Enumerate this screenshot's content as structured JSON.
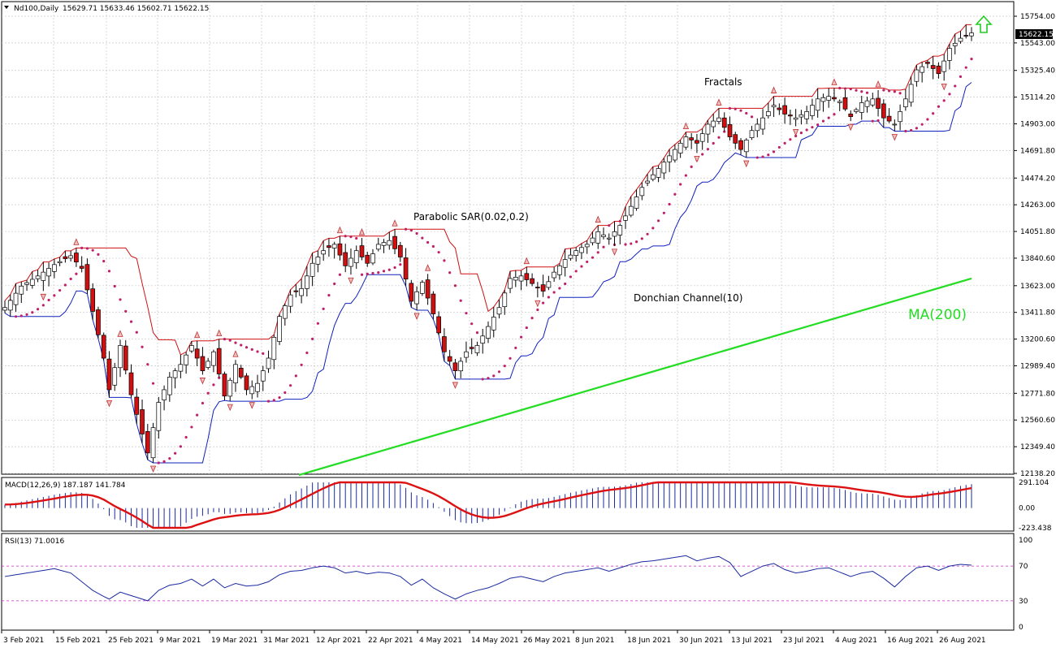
{
  "chart_data": [
    {
      "type": "candlestick",
      "header": {
        "symbol": "Nd100,Daily",
        "ohlc": "15629.71 15633.46 15602.71 15622.15"
      },
      "last_price": "15622.15",
      "y_ticks": [
        "15754.00",
        "15543.00",
        "15325.40",
        "15114.20",
        "14903.00",
        "14691.80",
        "14474.20",
        "14263.00",
        "14051.80",
        "13840.60",
        "13623.00",
        "13411.80",
        "13200.60",
        "12989.40",
        "12771.80",
        "12560.60",
        "12349.40",
        "12138.20"
      ],
      "ylim": [
        12138.2,
        15754.0
      ],
      "x_labels": [
        "3 Feb 2021",
        "15 Feb 2021",
        "25 Feb 2021",
        "9 Mar 2021",
        "19 Mar 2021",
        "31 Mar 2021",
        "12 Apr 2021",
        "22 Apr 2021",
        "4 May 2021",
        "14 May 2021",
        "26 May 2021",
        "8 Jun 2021",
        "18 Jun 2021",
        "30 Jun 2021",
        "13 Jul 2021",
        "23 Jul 2021",
        "4 Aug 2021",
        "16 Aug 2021",
        "26 Aug 2021"
      ],
      "annotations": {
        "fractals": "Fractals",
        "sar": "Parabolic SAR(0.02,0.2)",
        "donchian": "Donchian Channel(10)",
        "ma": "MA(200)"
      },
      "close_anchors": [
        [
          0,
          13450
        ],
        [
          3,
          13620
        ],
        [
          6,
          13700
        ],
        [
          9,
          13790
        ],
        [
          12,
          13860
        ],
        [
          14,
          13760
        ],
        [
          16,
          13420
        ],
        [
          18,
          13050
        ],
        [
          19,
          12800
        ],
        [
          21,
          13150
        ],
        [
          23,
          12760
        ],
        [
          25,
          12450
        ],
        [
          26,
          12300
        ],
        [
          28,
          12700
        ],
        [
          30,
          12900
        ],
        [
          32,
          13000
        ],
        [
          34,
          13150
        ],
        [
          36,
          12950
        ],
        [
          38,
          13100
        ],
        [
          40,
          12750
        ],
        [
          42,
          13000
        ],
        [
          44,
          12800
        ],
        [
          46,
          12850
        ],
        [
          48,
          13050
        ],
        [
          50,
          13380
        ],
        [
          52,
          13550
        ],
        [
          54,
          13600
        ],
        [
          56,
          13800
        ],
        [
          58,
          13900
        ],
        [
          60,
          13950
        ],
        [
          62,
          13780
        ],
        [
          64,
          13900
        ],
        [
          66,
          13800
        ],
        [
          68,
          13950
        ],
        [
          70,
          13980
        ],
        [
          72,
          13850
        ],
        [
          74,
          13500
        ],
        [
          76,
          13650
        ],
        [
          78,
          13400
        ],
        [
          80,
          13100
        ],
        [
          82,
          12950
        ],
        [
          84,
          13100
        ],
        [
          86,
          13150
        ],
        [
          88,
          13300
        ],
        [
          90,
          13450
        ],
        [
          92,
          13680
        ],
        [
          94,
          13700
        ],
        [
          96,
          13640
        ],
        [
          98,
          13580
        ],
        [
          100,
          13730
        ],
        [
          102,
          13830
        ],
        [
          104,
          13900
        ],
        [
          106,
          13950
        ],
        [
          108,
          14050
        ],
        [
          110,
          14000
        ],
        [
          112,
          14100
        ],
        [
          114,
          14250
        ],
        [
          116,
          14400
        ],
        [
          118,
          14500
        ],
        [
          120,
          14600
        ],
        [
          122,
          14700
        ],
        [
          124,
          14800
        ],
        [
          126,
          14750
        ],
        [
          128,
          14900
        ],
        [
          130,
          14950
        ],
        [
          132,
          14800
        ],
        [
          134,
          14700
        ],
        [
          136,
          14850
        ],
        [
          138,
          14950
        ],
        [
          140,
          15050
        ],
        [
          142,
          14980
        ],
        [
          144,
          14950
        ],
        [
          146,
          15000
        ],
        [
          148,
          15100
        ],
        [
          150,
          15120
        ],
        [
          152,
          15080
        ],
        [
          154,
          14960
        ],
        [
          156,
          15070
        ],
        [
          158,
          15100
        ],
        [
          160,
          14950
        ],
        [
          162,
          14900
        ],
        [
          164,
          15100
        ],
        [
          166,
          15330
        ],
        [
          168,
          15380
        ],
        [
          170,
          15300
        ],
        [
          172,
          15500
        ],
        [
          174,
          15580
        ],
        [
          176,
          15622.15
        ]
      ]
    },
    {
      "type": "line",
      "title": "MACD(12,26,9) 187.187 141.784",
      "y_ticks": [
        "291.104",
        "0.00",
        "-223.438"
      ],
      "ylim": [
        -223.438,
        291.104
      ]
    },
    {
      "type": "line",
      "title": "RSI(13) 71.0016",
      "y_ticks": [
        "100",
        "70",
        "30",
        "0"
      ],
      "ylim": [
        0,
        100
      ],
      "levels": [
        70,
        30
      ],
      "rsi_anchors": [
        [
          0,
          58
        ],
        [
          5,
          63
        ],
        [
          9,
          67
        ],
        [
          12,
          62
        ],
        [
          14,
          52
        ],
        [
          16,
          42
        ],
        [
          18,
          35
        ],
        [
          19,
          32
        ],
        [
          21,
          40
        ],
        [
          23,
          36
        ],
        [
          25,
          32
        ],
        [
          26,
          30
        ],
        [
          28,
          42
        ],
        [
          30,
          48
        ],
        [
          32,
          50
        ],
        [
          34,
          55
        ],
        [
          36,
          47
        ],
        [
          38,
          55
        ],
        [
          40,
          45
        ],
        [
          42,
          50
        ],
        [
          44,
          47
        ],
        [
          46,
          48
        ],
        [
          48,
          52
        ],
        [
          50,
          60
        ],
        [
          52,
          64
        ],
        [
          54,
          65
        ],
        [
          56,
          68
        ],
        [
          58,
          70
        ],
        [
          60,
          68
        ],
        [
          62,
          62
        ],
        [
          64,
          64
        ],
        [
          66,
          61
        ],
        [
          68,
          63
        ],
        [
          70,
          62
        ],
        [
          72,
          58
        ],
        [
          74,
          48
        ],
        [
          76,
          55
        ],
        [
          78,
          45
        ],
        [
          80,
          38
        ],
        [
          82,
          32
        ],
        [
          84,
          38
        ],
        [
          86,
          42
        ],
        [
          88,
          45
        ],
        [
          90,
          50
        ],
        [
          92,
          56
        ],
        [
          94,
          58
        ],
        [
          96,
          55
        ],
        [
          98,
          52
        ],
        [
          100,
          58
        ],
        [
          102,
          62
        ],
        [
          104,
          64
        ],
        [
          106,
          66
        ],
        [
          108,
          68
        ],
        [
          110,
          64
        ],
        [
          112,
          68
        ],
        [
          114,
          72
        ],
        [
          116,
          75
        ],
        [
          118,
          76
        ],
        [
          120,
          78
        ],
        [
          122,
          80
        ],
        [
          124,
          82
        ],
        [
          126,
          76
        ],
        [
          128,
          79
        ],
        [
          130,
          81
        ],
        [
          132,
          74
        ],
        [
          134,
          58
        ],
        [
          136,
          64
        ],
        [
          138,
          70
        ],
        [
          140,
          73
        ],
        [
          142,
          66
        ],
        [
          144,
          62
        ],
        [
          146,
          64
        ],
        [
          148,
          67
        ],
        [
          150,
          68
        ],
        [
          152,
          63
        ],
        [
          154,
          58
        ],
        [
          156,
          62
        ],
        [
          158,
          64
        ],
        [
          160,
          56
        ],
        [
          162,
          46
        ],
        [
          164,
          58
        ],
        [
          166,
          68
        ],
        [
          168,
          70
        ],
        [
          170,
          65
        ],
        [
          172,
          70
        ],
        [
          174,
          72
        ],
        [
          176,
          71
        ]
      ]
    }
  ],
  "colors": {
    "up_candle": "#ffffff",
    "down_candle": "#d01010",
    "donchian_upper": "#d01010",
    "donchian_lower": "#1020c0",
    "sar": "#c0206a",
    "ma": "#22dd22",
    "macd_hist": "#1a2aa0",
    "macd_signal": "#dd1111",
    "rsi": "#1a2aa0",
    "rsi_levels": "#cc22cc",
    "grid": "#c8c8c8",
    "arrow": "#22cc22"
  }
}
